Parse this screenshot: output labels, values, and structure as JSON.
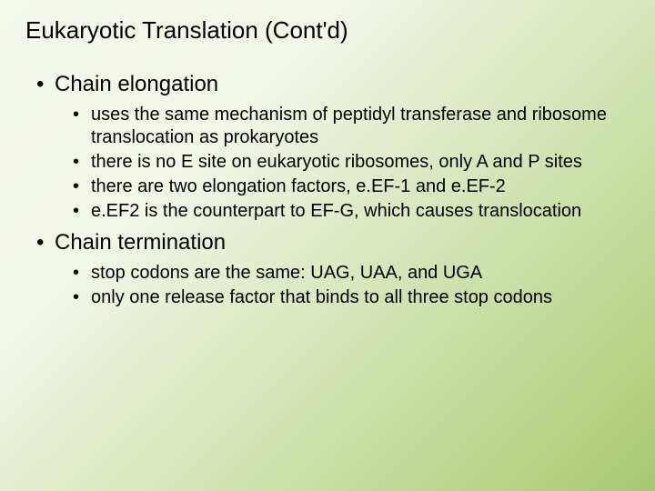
{
  "slide": {
    "title": "Eukaryotic Translation (Cont'd)",
    "background_gradient": {
      "start": "#f5f8ed",
      "mid1": "#f2f6e8",
      "mid2": "#d4e4b5",
      "mid3": "#b8d488",
      "end": "#a8c970"
    },
    "title_fontsize": 26,
    "level1_fontsize": 24,
    "level2_fontsize": 20,
    "text_color": "#000000",
    "sections": [
      {
        "heading": "Chain elongation",
        "items": [
          "uses the same mechanism of peptidyl transferase and ribosome translocation as prokaryotes",
          "there is no E site on eukaryotic ribosomes, only A and P sites",
          "there are two elongation factors, e.EF-1 and e.EF-2",
          "e.EF2 is the counterpart to EF-G, which causes translocation"
        ]
      },
      {
        "heading": "Chain termination",
        "items": [
          "stop codons are the same: UAG, UAA, and UGA",
          "only one release factor that binds to all three stop codons"
        ]
      }
    ]
  }
}
